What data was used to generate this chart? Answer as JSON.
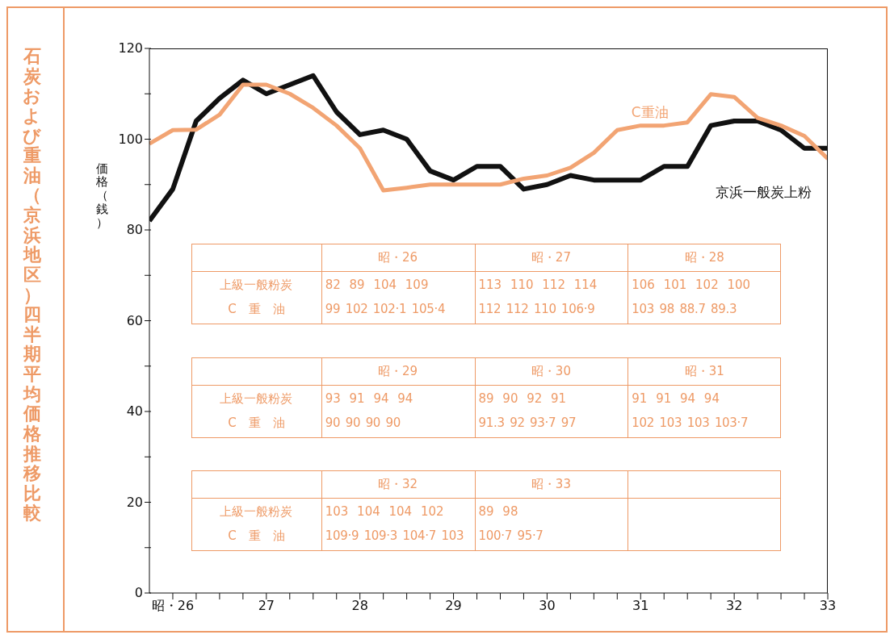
{
  "chart_data": {
    "type": "line",
    "title": "石炭および重油（京浜地区）四半期平均価格推移比較",
    "ylabel": "価格（銭）",
    "x": [
      26,
      26.25,
      26.5,
      26.75,
      27,
      27.25,
      27.5,
      27.75,
      28,
      28.25,
      28.5,
      28.75,
      29,
      29.25,
      29.5,
      29.75,
      30,
      30.25,
      30.5,
      30.75,
      31,
      31.25,
      31.5,
      31.75,
      32,
      32.25,
      32.5,
      32.75,
      33,
      33.25
    ],
    "xlim": [
      26,
      33.25
    ],
    "xticks": [
      {
        "value": 26.25,
        "label": "昭・26"
      },
      {
        "value": 26.5,
        "label": null
      },
      {
        "value": 26.75,
        "label": null
      },
      {
        "value": 27,
        "label": null
      },
      {
        "value": 27.25,
        "label": "27"
      },
      {
        "value": 27.5,
        "label": null
      },
      {
        "value": 27.75,
        "label": null
      },
      {
        "value": 28,
        "label": null
      },
      {
        "value": 28.25,
        "label": "28"
      },
      {
        "value": 28.5,
        "label": null
      },
      {
        "value": 28.75,
        "label": null
      },
      {
        "value": 29,
        "label": null
      },
      {
        "value": 29.25,
        "label": "29"
      },
      {
        "value": 29.5,
        "label": null
      },
      {
        "value": 29.75,
        "label": null
      },
      {
        "value": 30,
        "label": null
      },
      {
        "value": 30.25,
        "label": "30"
      },
      {
        "value": 30.5,
        "label": null
      },
      {
        "value": 30.75,
        "label": null
      },
      {
        "value": 31,
        "label": null
      },
      {
        "value": 31.25,
        "label": "31"
      },
      {
        "value": 31.5,
        "label": null
      },
      {
        "value": 31.75,
        "label": null
      },
      {
        "value": 32,
        "label": null
      },
      {
        "value": 32.25,
        "label": "32"
      },
      {
        "value": 32.5,
        "label": null
      },
      {
        "value": 32.75,
        "label": null
      },
      {
        "value": 33,
        "label": null
      },
      {
        "value": 33.25,
        "label": "33"
      }
    ],
    "ylim": [
      0,
      120
    ],
    "yticks": [
      0,
      {
        "value": 10,
        "label": null
      },
      20,
      {
        "value": 30,
        "label": null
      },
      40,
      {
        "value": 50,
        "label": null
      },
      60,
      {
        "value": 70,
        "label": null
      },
      80,
      {
        "value": 90,
        "label": null
      },
      100,
      {
        "value": 110,
        "label": null
      },
      120
    ],
    "series": [
      {
        "name": "京浜一般炭上粉",
        "color": "#111111",
        "values": [
          82,
          89,
          104,
          109,
          113,
          110,
          112,
          114,
          106,
          101,
          102,
          100,
          93,
          91,
          94,
          94,
          89,
          90,
          92,
          91,
          91,
          91,
          94,
          94,
          103,
          104,
          104,
          102,
          98,
          98
        ]
      },
      {
        "name": "C重油",
        "color": "#f2a473",
        "values": [
          99,
          102,
          102.1,
          105.4,
          112,
          112,
          110,
          106.9,
          103,
          98,
          88.7,
          89.3,
          90,
          90,
          90,
          90,
          91.3,
          92,
          93.7,
          97,
          102,
          103,
          103,
          103.7,
          109.9,
          109.3,
          104.7,
          103,
          100.7,
          95.7
        ]
      }
    ],
    "annotations": [
      "上級一般粉炭",
      "C　重　油",
      "昭・26",
      "昭・27",
      "昭・28",
      "昭・29",
      "昭・30",
      "昭・31",
      "昭・32",
      "昭・33",
      "82 89 104 109",
      "113 110 112 114",
      "106 101 102 100",
      "93 91 94 94",
      "89 90 92 91",
      "91 91 94 94",
      "103 104 104 102",
      "89 98",
      "99 102 102·1 105·4",
      "112 112 110 106·9",
      "103 98 88.7 89.3",
      "90 90 90 90",
      "91.3 92 93·7 97",
      "102 103 103 103·7",
      "109·9 109·3 104·7 103",
      "100·7 95·7"
    ],
    "legend": false,
    "grid": false,
    "marker": "none",
    "line_style": "solid"
  }
}
